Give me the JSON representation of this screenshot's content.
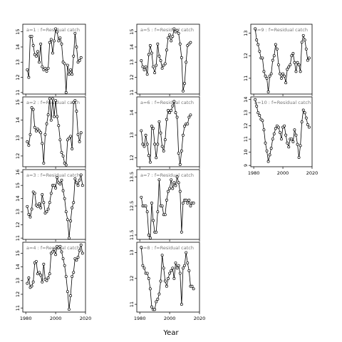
{
  "chart_data": {
    "type": "line",
    "xlabel": "Year",
    "ylabel": "",
    "xlim": [
      1978,
      2020
    ],
    "x_ticks": [
      1980,
      2000,
      2020
    ],
    "panels": [
      {
        "label": "a=1 : f=Residual catch",
        "ylim": [
          10.9,
          15.5
        ],
        "y_ticks": [
          11,
          12,
          13,
          14,
          15
        ],
        "x": [
          1981,
          1982,
          1983,
          1984,
          1985,
          1986,
          1987,
          1988,
          1989,
          1990,
          1991,
          1992,
          1993,
          1994,
          1995,
          1996,
          1997,
          1998,
          1999,
          2000,
          2001,
          2002,
          2003,
          2004,
          2005,
          2006,
          2007,
          2008,
          2009,
          2010,
          2011,
          2012,
          2013,
          2014,
          2015,
          2016,
          2017
        ],
        "y": [
          12.5,
          12.0,
          14.7,
          14.7,
          14.1,
          13.5,
          13.4,
          13.7,
          13.0,
          14.2,
          12.7,
          12.5,
          12.6,
          12.4,
          12.6,
          14.3,
          14.5,
          13.6,
          14.4,
          15.2,
          15.0,
          14.4,
          14.6,
          14.2,
          13.0,
          12.9,
          11.0,
          12.8,
          12.2,
          12.5,
          12.2,
          13.4,
          14.9,
          14.0,
          13.0,
          13.1,
          13.3
        ]
      },
      {
        "label": "a=2 : f=Residual catch",
        "ylim": [
          11.4,
          15.3
        ],
        "y_ticks": [
          12,
          13,
          14,
          15
        ],
        "x": [
          1981,
          1982,
          1983,
          1984,
          1985,
          1986,
          1987,
          1988,
          1989,
          1990,
          1991,
          1992,
          1993,
          1994,
          1995,
          1996,
          1997,
          1998,
          1999,
          2000,
          2001,
          2002,
          2003,
          2004,
          2005,
          2006,
          2007,
          2008,
          2009,
          2010,
          2011,
          2012,
          2013,
          2014,
          2015,
          2016,
          2017
        ],
        "y": [
          12.8,
          12.6,
          13.2,
          14.7,
          14.6,
          13.6,
          13.4,
          13.5,
          13.4,
          13.3,
          12.7,
          11.6,
          13.2,
          13.8,
          14.3,
          15.2,
          14.0,
          15.2,
          14.2,
          15.1,
          14.2,
          13.7,
          12.9,
          12.2,
          12.0,
          11.6,
          11.5,
          12.9,
          13.0,
          13.1,
          12.4,
          15.0,
          15.1,
          14.5,
          13.2,
          12.8,
          13.3
        ]
      },
      {
        "label": "a=3 : f=Residual catch",
        "ylim": [
          10.9,
          16.2
        ],
        "y_ticks": [
          11,
          12,
          13,
          14,
          15,
          16
        ],
        "x": [
          1981,
          1982,
          1983,
          1984,
          1985,
          1986,
          1987,
          1988,
          1989,
          1990,
          1991,
          1992,
          1993,
          1994,
          1995,
          1996,
          1997,
          1998,
          1999,
          2000,
          2001,
          2002,
          2003,
          2004,
          2005,
          2006,
          2007,
          2008,
          2009,
          2010,
          2011,
          2012,
          2013,
          2014,
          2015,
          2016,
          2017,
          2018
        ],
        "y": [
          13.4,
          12.8,
          12.6,
          13.2,
          14.5,
          14.4,
          13.5,
          13.4,
          13.6,
          13.3,
          14.3,
          13.7,
          12.9,
          13.0,
          13.2,
          13.7,
          14.4,
          15.0,
          15.0,
          14.8,
          15.6,
          15.2,
          15.1,
          15.4,
          14.6,
          14.0,
          13.0,
          12.4,
          11.0,
          12.3,
          13.3,
          13.7,
          15.5,
          15.2,
          15.0,
          15.4,
          15.8,
          15.0
        ]
      },
      {
        "label": "a=4 : f=Residual catch",
        "ylim": [
          10.7,
          15.8
        ],
        "y_ticks": [
          11,
          12,
          13,
          14,
          15
        ],
        "x": [
          1981,
          1982,
          1983,
          1984,
          1985,
          1986,
          1987,
          1988,
          1989,
          1990,
          1991,
          1992,
          1993,
          1994,
          1995,
          1996,
          1997,
          1998,
          1999,
          2000,
          2001,
          2002,
          2003,
          2004,
          2005,
          2006,
          2007,
          2008,
          2009,
          2010,
          2011,
          2012,
          2013,
          2014,
          2015,
          2016,
          2017,
          2018
        ],
        "y": [
          12.8,
          13.2,
          12.5,
          12.6,
          12.9,
          14.3,
          14.4,
          13.5,
          13.6,
          13.4,
          12.9,
          14.2,
          13.1,
          13.0,
          13.2,
          13.5,
          15.0,
          15.1,
          15.3,
          14.9,
          15.5,
          15.4,
          15.5,
          15.1,
          14.6,
          14.1,
          13.3,
          12.2,
          10.9,
          11.9,
          13.3,
          13.6,
          14.6,
          14.5,
          14.7,
          15.2,
          15.6,
          15.0
        ]
      },
      {
        "label": "a=5 : f=Residual catch",
        "ylim": [
          10.9,
          15.5
        ],
        "y_ticks": [
          11,
          12,
          13,
          14,
          15
        ],
        "x": [
          1981,
          1982,
          1983,
          1984,
          1985,
          1986,
          1987,
          1988,
          1989,
          1990,
          1991,
          1992,
          1993,
          1994,
          1995,
          1996,
          1997,
          1998,
          1999,
          2000,
          2001,
          2002,
          2003,
          2004,
          2005,
          2006,
          2007,
          2008,
          2009,
          2010,
          2011,
          2012,
          2013,
          2014
        ],
        "y": [
          13.1,
          12.7,
          12.5,
          12.7,
          12.2,
          13.5,
          14.1,
          13.6,
          12.7,
          12.3,
          12.8,
          14.2,
          13.4,
          13.1,
          12.6,
          12.8,
          12.9,
          13.8,
          14.6,
          14.8,
          14.4,
          14.7,
          15.2,
          15.0,
          15.1,
          14.9,
          14.2,
          13.3,
          11.1,
          11.6,
          13.0,
          14.1,
          14.2,
          14.3
        ]
      },
      {
        "label": "a=6 : f=Residual catch",
        "ylim": [
          11.6,
          14.7
        ],
        "y_ticks": [
          12.0,
          13.0,
          14.0
        ],
        "x": [
          1981,
          1982,
          1983,
          1984,
          1985,
          1986,
          1987,
          1988,
          1989,
          1990,
          1991,
          1992,
          1993,
          1994,
          1995,
          1996,
          1997,
          1998,
          1999,
          2000,
          2001,
          2002,
          2003,
          2004,
          2005,
          2006,
          2007,
          2008,
          2009,
          2010,
          2011,
          2012,
          2013,
          2014
        ],
        "y": [
          13.2,
          12.6,
          12.5,
          13.0,
          12.6,
          12.1,
          11.8,
          13.4,
          13.3,
          12.6,
          12.0,
          12.6,
          13.6,
          13.1,
          12.5,
          12.3,
          12.8,
          13.7,
          14.1,
          14.0,
          14.1,
          14.3,
          14.5,
          14.0,
          13.8,
          12.2,
          11.7,
          12.3,
          13.0,
          13.4,
          13.5,
          13.5,
          13.8,
          13.9
        ]
      },
      {
        "label": "a=7 : f=Residual catch",
        "ylim": [
          11.35,
          13.75
        ],
        "y_ticks": [
          11.5,
          12.5,
          13.5
        ],
        "x": [
          1981,
          1982,
          1983,
          1984,
          1985,
          1986,
          1987,
          1988,
          1989,
          1990,
          1991,
          1992,
          1993,
          1994,
          1995,
          1996,
          1997,
          1998,
          1999,
          2000,
          2001,
          2002,
          2003,
          2004,
          2005,
          2006,
          2007,
          2008,
          2009,
          2010,
          2011,
          2012,
          2013,
          2014,
          2015,
          2016
        ],
        "y": [
          12.8,
          12.5,
          12.5,
          12.5,
          12.3,
          11.5,
          11.4,
          12.6,
          12.0,
          11.6,
          11.6,
          12.3,
          13.4,
          12.5,
          12.5,
          12.2,
          12.2,
          12.7,
          13.0,
          13.1,
          13.4,
          13.1,
          13.3,
          13.2,
          13.5,
          13.3,
          13.0,
          11.6,
          12.6,
          12.7,
          12.7,
          12.6,
          12.7,
          12.5,
          12.6,
          12.6
        ]
      },
      {
        "label": "a=8 : f=Residual catch",
        "ylim": [
          10.7,
          13.4
        ],
        "y_ticks": [
          11.0,
          12.0,
          13.0
        ],
        "x": [
          1981,
          1982,
          1983,
          1984,
          1985,
          1986,
          1987,
          1988,
          1989,
          1990,
          1991,
          1992,
          1993,
          1994,
          1995,
          1996,
          1997,
          1998,
          1999,
          2000,
          2001,
          2002,
          2003,
          2004,
          2005,
          2006,
          2007,
          2008,
          2009,
          2010,
          2011,
          2012,
          2013,
          2014,
          2015,
          2016
        ],
        "y": [
          13.2,
          12.5,
          12.4,
          12.2,
          12.2,
          12.0,
          11.6,
          10.9,
          10.8,
          10.8,
          11.1,
          11.2,
          11.4,
          11.9,
          12.9,
          12.4,
          11.9,
          11.7,
          12.0,
          12.2,
          12.3,
          12.4,
          12.0,
          12.6,
          12.4,
          12.5,
          12.2,
          11.0,
          12.4,
          12.5,
          13.0,
          12.6,
          12.3,
          11.7,
          11.7,
          11.6
        ]
      },
      {
        "label": "a=9 : f=Residual catch",
        "ylim": [
          10.3,
          13.4
        ],
        "y_ticks": [
          11,
          12,
          13
        ],
        "x": [
          1981,
          1982,
          1983,
          1984,
          1985,
          1986,
          1987,
          1988,
          1989,
          1990,
          1991,
          1992,
          1993,
          1994,
          1995,
          1996,
          1997,
          1998,
          1999,
          2000,
          2001,
          2002,
          2003,
          2004,
          2005,
          2006,
          2007,
          2008,
          2009,
          2010,
          2011,
          2012,
          2013,
          2014,
          2015,
          2016,
          2017,
          2018
        ],
        "y": [
          13.2,
          12.7,
          12.5,
          12.2,
          11.9,
          11.9,
          11.3,
          11.1,
          11.0,
          10.4,
          11.1,
          11.2,
          11.8,
          12.0,
          12.5,
          12.3,
          11.6,
          11.2,
          11.0,
          11.2,
          11.1,
          10.8,
          11.4,
          11.5,
          11.6,
          12.0,
          12.1,
          11.7,
          11.3,
          11.7,
          11.6,
          11.3,
          12.6,
          12.9,
          12.7,
          12.3,
          11.8,
          11.9
        ]
      },
      {
        "label": "a=10 : f=Residual catch",
        "ylim": [
          8.9,
          14.2
        ],
        "y_ticks": [
          9,
          10,
          11,
          12,
          13,
          14
        ],
        "x": [
          1981,
          1982,
          1983,
          1984,
          1985,
          1986,
          1987,
          1988,
          1989,
          1990,
          1991,
          1992,
          1993,
          1994,
          1995,
          1996,
          1997,
          1998,
          1999,
          2000,
          2001,
          2002,
          2003,
          2004,
          2005,
          2006,
          2007,
          2008,
          2009,
          2010,
          2011,
          2012,
          2013,
          2014,
          2015,
          2016,
          2017,
          2018
        ],
        "y": [
          14.0,
          13.5,
          13.0,
          12.8,
          12.5,
          12.4,
          11.7,
          10.7,
          10.1,
          9.3,
          9.8,
          10.3,
          11.0,
          11.4,
          11.8,
          12.0,
          11.9,
          11.5,
          11.0,
          11.9,
          12.0,
          11.3,
          10.7,
          10.4,
          11.0,
          11.0,
          10.8,
          11.7,
          11.3,
          10.6,
          9.6,
          10.5,
          12.3,
          13.2,
          13.0,
          12.6,
          12.1,
          11.9
        ]
      }
    ]
  }
}
